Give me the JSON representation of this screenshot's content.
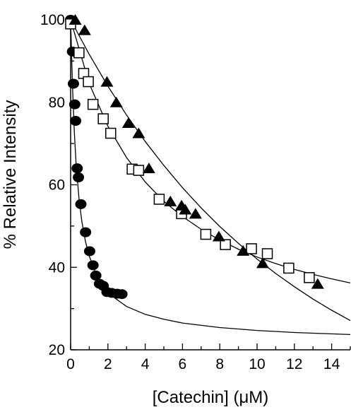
{
  "chart_data": {
    "type": "scatter",
    "xlabel": "[Catechin] (μM)",
    "ylabel": "% Relative Intensity",
    "xlim": [
      0,
      15
    ],
    "ylim": [
      20,
      100
    ],
    "xticks": [
      0,
      2,
      4,
      6,
      8,
      10,
      12,
      14
    ],
    "yticks": [
      20,
      40,
      60,
      80,
      100
    ],
    "grid": false,
    "legend": "none",
    "series": [
      {
        "marker": "filled-circle",
        "color": "#000000",
        "points": [
          [
            0.0,
            100.0
          ],
          [
            0.05,
            99.8
          ],
          [
            0.1,
            92.3
          ],
          [
            0.15,
            84.5
          ],
          [
            0.22,
            79.5
          ],
          [
            0.27,
            75.5
          ],
          [
            0.35,
            64.0
          ],
          [
            0.42,
            61.8
          ],
          [
            0.55,
            55.3
          ],
          [
            0.8,
            48.5
          ],
          [
            1.02,
            43.9
          ],
          [
            1.2,
            40.5
          ],
          [
            1.35,
            38.0
          ],
          [
            1.55,
            36.0
          ],
          [
            1.75,
            35.5
          ],
          [
            1.95,
            34.0
          ],
          [
            2.2,
            33.8
          ],
          [
            2.5,
            33.6
          ],
          [
            2.75,
            33.5
          ]
        ],
        "fit": [
          [
            0.0,
            100.0
          ],
          [
            0.1,
            84.1
          ],
          [
            0.2,
            72.6
          ],
          [
            0.3,
            64.6
          ],
          [
            0.45,
            56.6
          ],
          [
            0.6,
            51.2
          ],
          [
            0.8,
            46.2
          ],
          [
            1.0,
            42.7
          ],
          [
            1.3,
            39.1
          ],
          [
            1.7,
            35.8
          ],
          [
            2.2,
            33.1
          ],
          [
            3.0,
            30.5
          ],
          [
            4.0,
            28.6
          ],
          [
            5.0,
            27.4
          ],
          [
            6.0,
            26.5
          ],
          [
            8.0,
            25.4
          ],
          [
            10.0,
            24.7
          ],
          [
            12.0,
            24.2
          ],
          [
            15.0,
            23.7
          ]
        ]
      },
      {
        "marker": "open-square",
        "color": "#000000",
        "points": [
          [
            0.0,
            99.0
          ],
          [
            0.45,
            92.0
          ],
          [
            0.7,
            87.0
          ],
          [
            0.95,
            85.0
          ],
          [
            1.2,
            79.5
          ],
          [
            1.75,
            76.0
          ],
          [
            2.15,
            72.5
          ],
          [
            3.3,
            63.8
          ],
          [
            3.65,
            63.5
          ],
          [
            4.75,
            56.5
          ],
          [
            5.95,
            53.0
          ],
          [
            7.25,
            48.0
          ],
          [
            8.3,
            45.5
          ],
          [
            9.7,
            44.5
          ],
          [
            10.55,
            43.3
          ],
          [
            11.7,
            39.8
          ],
          [
            12.8,
            37.5
          ]
        ],
        "fit": [
          [
            0.0,
            100.0
          ],
          [
            1.0,
            84.5
          ],
          [
            2.0,
            74.2
          ],
          [
            3.0,
            66.6
          ],
          [
            4.0,
            60.7
          ],
          [
            5.0,
            56.0
          ],
          [
            6.0,
            52.3
          ],
          [
            7.0,
            49.2
          ],
          [
            8.0,
            46.6
          ],
          [
            9.0,
            44.4
          ],
          [
            10.0,
            42.5
          ],
          [
            11.0,
            40.9
          ],
          [
            12.0,
            39.5
          ],
          [
            13.0,
            38.3
          ],
          [
            14.0,
            37.2
          ],
          [
            15.0,
            36.2
          ]
        ]
      },
      {
        "marker": "filled-triangle",
        "color": "#000000",
        "points": [
          [
            0.25,
            100.0
          ],
          [
            0.75,
            97.5
          ],
          [
            1.95,
            85.0
          ],
          [
            2.45,
            80.0
          ],
          [
            3.1,
            75.0
          ],
          [
            3.65,
            72.5
          ],
          [
            4.2,
            64.0
          ],
          [
            5.35,
            56.0
          ],
          [
            5.95,
            55.0
          ],
          [
            6.15,
            54.0
          ],
          [
            6.7,
            53.0
          ],
          [
            7.95,
            47.5
          ],
          [
            9.25,
            44.0
          ],
          [
            10.3,
            41.0
          ],
          [
            13.25,
            36.0
          ]
        ],
        "fit": [
          [
            0.0,
            100.0
          ],
          [
            1.0,
            91.6
          ],
          [
            2.0,
            83.9
          ],
          [
            3.0,
            76.9
          ],
          [
            4.0,
            70.5
          ],
          [
            5.0,
            64.7
          ],
          [
            6.0,
            59.3
          ],
          [
            7.0,
            54.4
          ],
          [
            8.0,
            49.9
          ],
          [
            9.0,
            45.8
          ],
          [
            10.0,
            42.0
          ],
          [
            11.0,
            38.5
          ],
          [
            12.0,
            35.3
          ],
          [
            13.0,
            32.3
          ],
          [
            14.0,
            29.6
          ],
          [
            15.0,
            27.1
          ]
        ]
      }
    ]
  }
}
